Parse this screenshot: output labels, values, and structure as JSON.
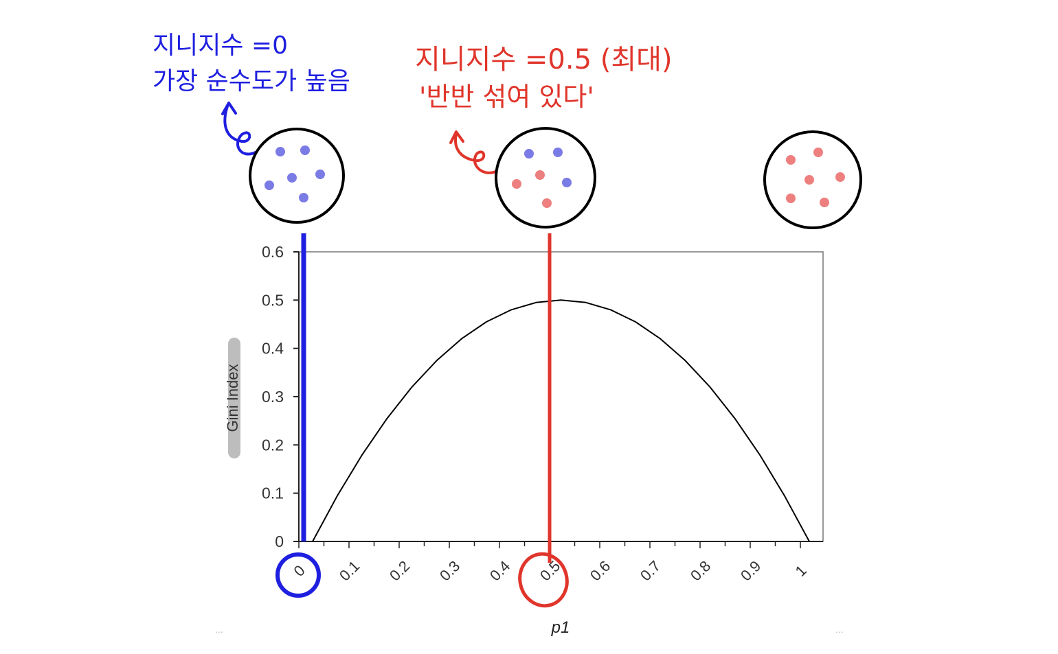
{
  "annotations": {
    "left_note": {
      "line1": "지니지수 =0",
      "line2": "가장 순수도가 높음",
      "color": "#1f1fe0"
    },
    "middle_note": {
      "line1": "지니지수 =0.5 (최대)",
      "line2": "'반반 섞여 있다'",
      "color": "#e0352b"
    },
    "samples": [
      {
        "label": "p1 = 0",
        "blue_dots": 6,
        "red_dots": 0
      },
      {
        "label": "p1 = 0.5",
        "blue_dots": 3,
        "red_dots": 3
      },
      {
        "label": "p1 = 1",
        "blue_dots": 0,
        "red_dots": 6
      }
    ],
    "dot_colors": {
      "blue": "#7b7be6",
      "red": "#ee7f7f"
    },
    "ellipsis_left": "...",
    "ellipsis_right": "..."
  },
  "chart_data": {
    "type": "line",
    "title": "",
    "xlabel": "p1",
    "ylabel": "Gini Index",
    "xlim": [
      0,
      1
    ],
    "ylim": [
      0,
      0.6
    ],
    "x_ticks": [
      "0",
      "0.1",
      "0.2",
      "0.3",
      "0.4",
      "0.5",
      "0.6",
      "0.7",
      "0.8",
      "0.9",
      "1"
    ],
    "y_ticks": [
      "0",
      "0.1",
      "0.2",
      "0.3",
      "0.4",
      "0.5",
      "0.6"
    ],
    "grid": false,
    "series": [
      {
        "x": [
          0.0,
          0.05,
          0.1,
          0.15,
          0.2,
          0.25,
          0.3,
          0.35,
          0.4,
          0.45,
          0.5,
          0.55,
          0.6,
          0.65,
          0.7,
          0.75,
          0.8,
          0.85,
          0.9,
          0.95,
          1.0
        ],
        "y": [
          0.0,
          0.095,
          0.18,
          0.255,
          0.32,
          0.375,
          0.42,
          0.455,
          0.48,
          0.495,
          0.5,
          0.495,
          0.48,
          0.455,
          0.42,
          0.375,
          0.32,
          0.255,
          0.18,
          0.095,
          0.0
        ],
        "color": "#000000"
      }
    ],
    "highlights": [
      {
        "x": 0,
        "color": "#1f1fe0"
      },
      {
        "x": 0.5,
        "color": "#e0352b"
      }
    ]
  }
}
